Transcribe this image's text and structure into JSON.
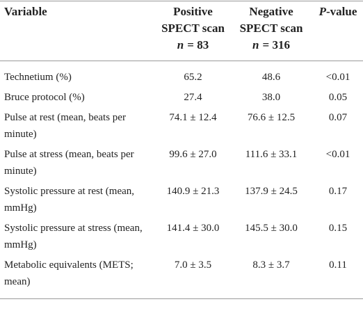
{
  "table": {
    "header": [
      [
        "Variable"
      ],
      [
        "Positive",
        "SPECT scan",
        "n",
        "= 83"
      ],
      [
        "Negative",
        "SPECT scan",
        "n",
        "= 316"
      ],
      [
        "P",
        "-value"
      ]
    ],
    "rows": [
      [
        "Technetium (%)",
        "65.2",
        "48.6",
        "<0.01"
      ],
      [
        "Bruce protocol (%)",
        "27.4",
        "38.0",
        "0.05"
      ],
      [
        "Pulse at rest (mean, beats per minute)",
        "74.1 ± 12.4",
        "76.6 ± 12.5",
        "0.07"
      ],
      [
        "Pulse at stress (mean, beats per minute)",
        "99.6 ± 27.0",
        "111.6 ± 33.1",
        "<0.01"
      ],
      [
        "Systolic pressure at rest (mean, mmHg)",
        "140.9 ± 21.3",
        "137.9 ± 24.5",
        "0.17"
      ],
      [
        "Systolic pressure at stress (mean, mmHg)",
        "141.4 ± 30.0",
        "145.5 ± 30.0",
        "0.15"
      ],
      [
        "Metabolic equivalents (METS; mean)",
        "7.0 ± 3.5",
        "8.3 ± 3.7",
        "0.11"
      ]
    ]
  }
}
